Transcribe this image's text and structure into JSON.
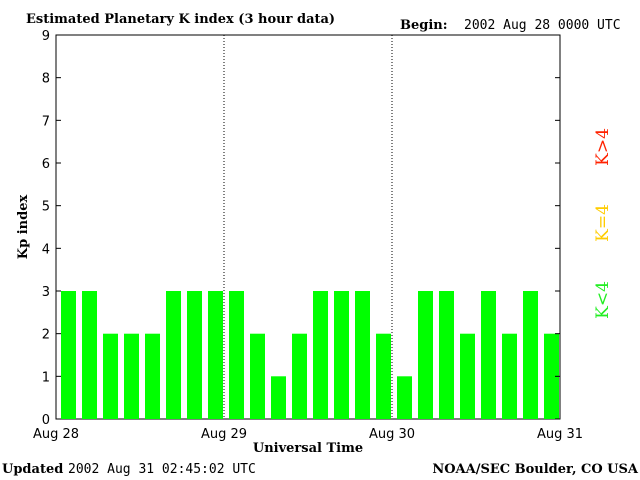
{
  "header": {
    "title": "Estimated Planetary K index (3 hour data)",
    "begin_label": "Begin:",
    "begin_value": "2002 Aug 28 0000 UTC"
  },
  "footer": {
    "updated_label": "Updated",
    "updated_value": "2002 Aug 31 02:45:02 UTC",
    "credit": "NOAA/SEC Boulder, CO USA"
  },
  "legend": {
    "items": [
      {
        "label": "K<4",
        "color": "#22ee22"
      },
      {
        "label": "K=4",
        "color": "#ffcc00"
      },
      {
        "label": "K>4",
        "color": "#ff2200"
      }
    ]
  },
  "colors": {
    "below4": "#00ff00",
    "equal4": "#ffff00",
    "above4": "#ff0000"
  },
  "chart_data": {
    "type": "bar",
    "ylabel": "Kp index",
    "xlabel": "Universal Time",
    "ylim": [
      0,
      9
    ],
    "yticks": [
      "0",
      "1",
      "2",
      "3",
      "4",
      "5",
      "6",
      "7",
      "8",
      "9"
    ],
    "xticks": [
      "Aug 28",
      "Aug 29",
      "Aug 30",
      "Aug 31"
    ],
    "day_separators": [
      1,
      2
    ],
    "values": [
      3,
      3,
      2,
      2,
      2,
      3,
      3,
      3,
      3,
      2,
      1,
      2,
      3,
      3,
      3,
      2,
      1,
      3,
      3,
      2,
      3,
      2,
      3,
      2
    ]
  }
}
